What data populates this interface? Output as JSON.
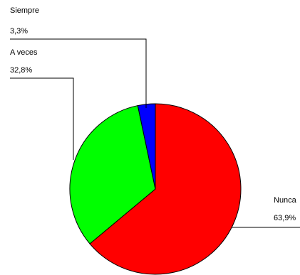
{
  "chart_data": {
    "type": "pie",
    "title": "",
    "categories": [
      "Nunca",
      "A veces",
      "Siempre"
    ],
    "values": [
      63.9,
      32.8,
      3.3
    ],
    "value_labels": [
      "63,9%",
      "32,8%",
      "3,3%"
    ],
    "colors": [
      "#ff0000",
      "#00ff00",
      "#0000ff"
    ],
    "start_angle": "12 o'clock",
    "direction": "clockwise",
    "labels_with_leader_lines": true
  }
}
